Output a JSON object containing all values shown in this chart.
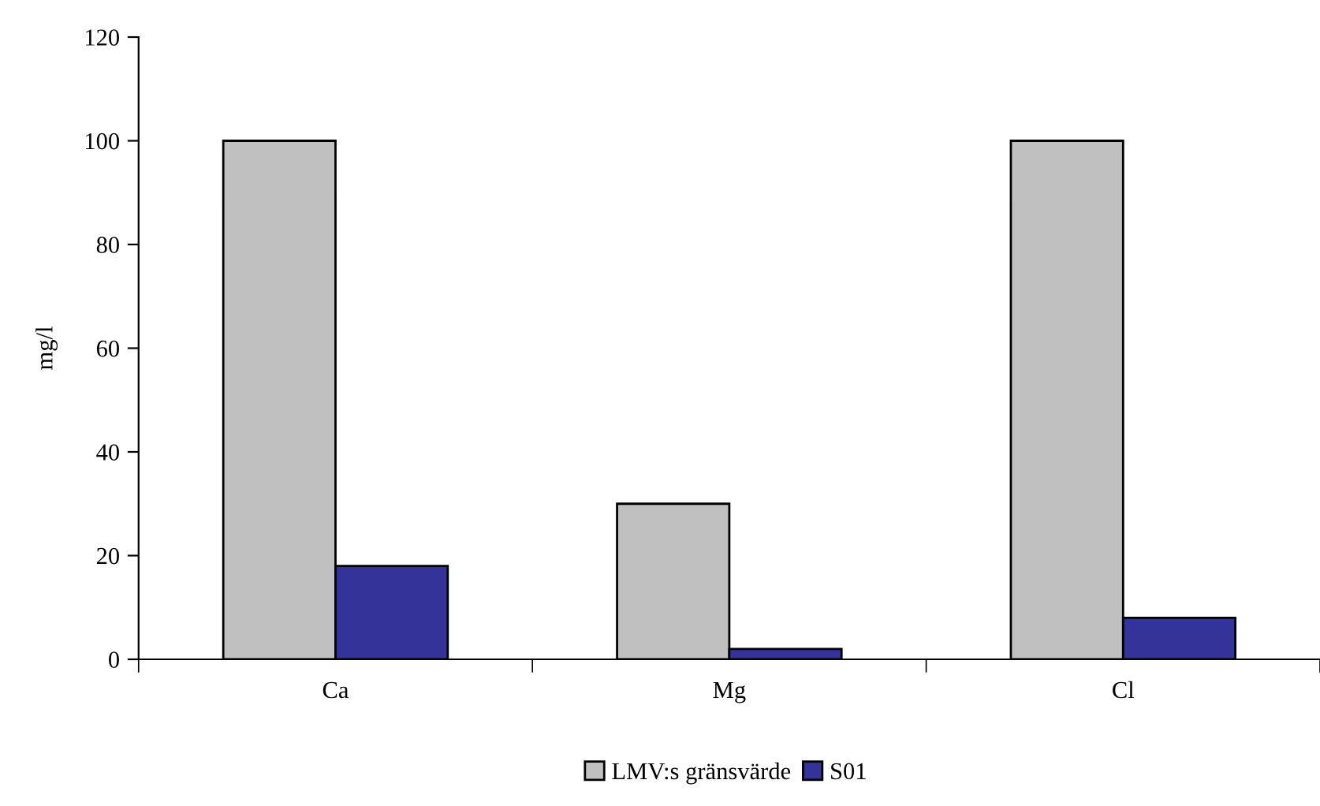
{
  "chart_data": {
    "type": "bar",
    "ylabel": "mg/l",
    "categories": [
      "Ca",
      "Mg",
      "Cl"
    ],
    "series": [
      {
        "name": "LMV:s gränsvärde",
        "color": "#c0c0c0",
        "values": [
          100,
          30,
          100
        ]
      },
      {
        "name": "S01",
        "color": "#333399",
        "values": [
          18,
          2,
          8
        ]
      }
    ],
    "ylim": [
      0,
      120
    ],
    "yticks": [
      0,
      20,
      40,
      60,
      80,
      100,
      120
    ],
    "grid": false,
    "legend": "bottom"
  }
}
